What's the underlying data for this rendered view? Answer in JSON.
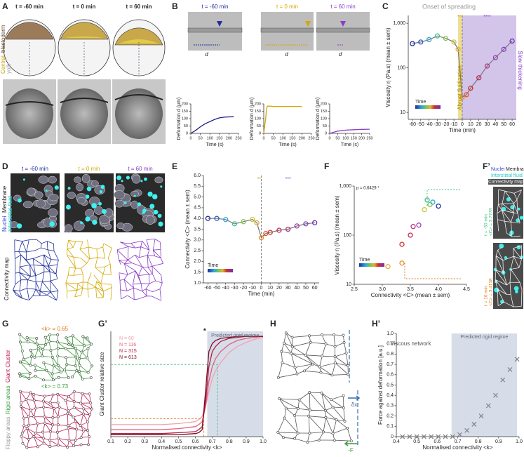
{
  "panel_labels": [
    "A",
    "B",
    "C",
    "D",
    "E",
    "F",
    "F’",
    "G",
    "G’",
    "H",
    "H’"
  ],
  "A": {
    "times": [
      "t = -60 min",
      "t = 0 min",
      "t = 60 min"
    ],
    "legend": [
      "Central",
      "blastoderm",
      "yolk"
    ]
  },
  "B": {
    "times": [
      "t = -60 min",
      "t = 0 min",
      "t = 60 min"
    ],
    "scale_labels": [
      "d",
      "d",
      "d"
    ]
  },
  "D": {
    "times": [
      "t = -60 min",
      "t = 0 min",
      "t = 60 min"
    ],
    "legend": [
      "Nuclei",
      "Membrane",
      "Interstitial fluid"
    ],
    "map_label": "Connectivity map"
  },
  "F2": {
    "legend": [
      "Nuclei",
      "Membrane",
      "Interstitial fluid"
    ],
    "map_label": "Connectivity map",
    "insets": [
      {
        "time": "t = -30 min",
        "value": "<C> = 3.7778"
      },
      {
        "time": "t = 10 min",
        "value": "<C> = 3.4138"
      }
    ]
  },
  "G": {
    "labels": [
      "<k> = 0.65",
      "<k> = 0.73"
    ],
    "legend": [
      "Floppy areas",
      "Rigid areas",
      "Giant Cluster"
    ]
  },
  "H": {
    "labels": [
      "δx",
      "-F"
    ]
  },
  "charts": {
    "B1": {
      "type": "line",
      "xlim": [
        0,
        250
      ],
      "ylim": [
        0,
        200
      ],
      "xticks": [
        0,
        50,
        100,
        150,
        200,
        250
      ],
      "yticks": [
        0,
        50,
        100,
        150,
        200
      ],
      "x_label": "Time (s)",
      "y_label": "Deformation d (μm)",
      "series": [
        {
          "color": "#1a1a8c",
          "x": [
            0,
            25,
            50,
            75,
            100,
            125,
            150,
            175,
            200,
            225
          ],
          "values": [
            0,
            20,
            45,
            65,
            80,
            95,
            105,
            110,
            112,
            113
          ]
        }
      ]
    },
    "B2": {
      "type": "line",
      "xlim": [
        0,
        250
      ],
      "ylim": [
        0,
        200
      ],
      "xticks": [
        0,
        50,
        100,
        150,
        200,
        250
      ],
      "yticks": [
        0,
        50,
        100,
        150,
        200
      ],
      "x_label": "Time (s)",
      "y_label": "Deformation d (μm)",
      "series": [
        {
          "color": "#d4a800",
          "x": [
            0,
            10,
            15,
            20,
            30,
            50,
            100,
            150,
            200
          ],
          "values": [
            0,
            100,
            170,
            185,
            185,
            183,
            183,
            183,
            183
          ]
        }
      ]
    },
    "B3": {
      "type": "line",
      "xlim": [
        0,
        250
      ],
      "ylim": [
        0,
        200
      ],
      "xticks": [
        0,
        50,
        100,
        150,
        200,
        250
      ],
      "yticks": [
        0,
        50,
        100,
        150,
        200
      ],
      "x_label": "Time (s)",
      "y_label": "Deformation d (μm)",
      "series": [
        {
          "color": "#8a3cc8",
          "x": [
            0,
            50,
            100,
            150,
            200,
            250
          ],
          "values": [
            0,
            15,
            22,
            25,
            27,
            28
          ]
        }
      ]
    },
    "C": {
      "type": "scatter",
      "connected": true,
      "log_y": true,
      "xlim": [
        -65,
        65
      ],
      "ylim": [
        7,
        1500
      ],
      "xticks": [
        -60,
        -50,
        -40,
        -30,
        -20,
        -10,
        0,
        10,
        20,
        30,
        40,
        50,
        60
      ],
      "yticks": [
        10,
        100,
        {
          "value": 1000,
          "label": "1,000"
        }
      ],
      "x_label": "Time (min)",
      "y_label": "Viscosity η (Pa.s) (mean ± sem)",
      "reference_x": 0,
      "colorbar": "Time",
      "regions": [
        {
          "from": -5,
          "to": 0,
          "color": "#eedd95"
        },
        {
          "from": 0,
          "to": 65,
          "color": "#d3c4ea"
        }
      ],
      "annotations": [
        "Onset of spreading",
        "***",
        "****",
        "Abrupt fluidization",
        "Slow thickening"
      ],
      "series": [
        {
          "color": "#777777",
          "x": [
            -60,
            -50,
            -40,
            -30,
            -20,
            -10,
            -5,
            0,
            5,
            10,
            20,
            30,
            40,
            50,
            60
          ],
          "values": [
            350,
            380,
            430,
            520,
            460,
            380,
            260,
            22,
            25,
            35,
            60,
            110,
            170,
            260,
            400
          ],
          "colors": [
            "#1f2f9c",
            "#2a5fc9",
            "#2ea6d8",
            "#3fbf8f",
            "#7fc84a",
            "#c9c53a",
            "#e0b23a",
            "#e89030",
            "#e25a2a",
            "#d0302a",
            "#c0285a",
            "#b03a8a",
            "#a040b0",
            "#8a40c0",
            "#7030b0"
          ]
        }
      ]
    },
    "E": {
      "type": "scatter",
      "connected": true,
      "xlim": [
        -65,
        65
      ],
      "ylim": [
        1,
        6
      ],
      "xticks": [
        -60,
        -50,
        -40,
        -30,
        -20,
        -10,
        0,
        10,
        20,
        30,
        40,
        50,
        60
      ],
      "yticks": [
        {
          "value": 1,
          "label": "1.0"
        },
        1.5,
        {
          "value": 2,
          "label": "2.0"
        },
        2.5,
        {
          "value": 3,
          "label": "3.0"
        },
        3.5,
        {
          "value": 4,
          "label": "4.0"
        },
        4.5,
        {
          "value": 5,
          "label": "5.0"
        },
        5.5,
        {
          "value": 6,
          "label": "6.0"
        }
      ],
      "x_label": "Time (min)",
      "y_label": "Connectivity <C> (mean ± sem)",
      "reference_x": 0,
      "colorbar": "Time",
      "annotations": [
        "**",
        "***"
      ],
      "series": [
        {
          "color": "#777777",
          "x": [
            -60,
            -50,
            -40,
            -30,
            -20,
            -10,
            -5,
            0,
            5,
            10,
            20,
            30,
            40,
            50,
            60
          ],
          "values": [
            4.0,
            4.0,
            3.95,
            3.75,
            3.85,
            3.95,
            3.8,
            3.1,
            3.3,
            3.35,
            3.45,
            3.5,
            3.65,
            3.75,
            3.8
          ],
          "colors": [
            "#1f2f9c",
            "#2a5fc9",
            "#2ea6d8",
            "#3fbf8f",
            "#7fc84a",
            "#c9c53a",
            "#e0b23a",
            "#e89030",
            "#e25a2a",
            "#d0302a",
            "#c0285a",
            "#b03a8a",
            "#a040b0",
            "#8a40c0",
            "#7030b0"
          ]
        }
      ]
    },
    "F": {
      "type": "scatter",
      "log_y": true,
      "xlim": [
        2.5,
        4.5
      ],
      "ylim": [
        10,
        1000
      ],
      "xticks": [
        2.5,
        {
          "value": 3,
          "label": "3.0"
        },
        3.5,
        {
          "value": 4,
          "label": "4.0"
        },
        4.5
      ],
      "yticks": [
        10,
        100,
        {
          "value": 1000,
          "label": "1,000"
        }
      ],
      "x_label": "Connectivity <C> (mean ± sem)",
      "y_label": "Viscosity η (Pa.s) (mean ± sem)",
      "colorbar": "Time",
      "annotations": [
        "p = 0.6429 *"
      ],
      "series": [
        {
          "color": "#777777",
          "x": [
            3.1,
            3.35,
            3.35,
            3.5,
            3.55,
            3.65,
            3.75,
            3.85,
            3.9,
            4.0,
            3.8
          ],
          "values": [
            23,
            27,
            65,
            100,
            150,
            160,
            330,
            420,
            470,
            390,
            520
          ],
          "colors": [
            "#e0b23a",
            "#e89030",
            "#d0302a",
            "#c0285a",
            "#b03a8a",
            "#a040b0",
            "#c9c53a",
            "#7fc84a",
            "#2ea6d8",
            "#1f2f9c",
            "#3fbf8f"
          ]
        }
      ]
    },
    "G2": {
      "type": "line",
      "legend": true,
      "xlim": [
        0.1,
        1.0
      ],
      "ylim": [
        0,
        1.05
      ],
      "xticks": [
        0.1,
        0.2,
        0.3,
        0.4,
        0.5,
        0.6,
        0.7,
        0.8,
        0.9,
        {
          "value": 1,
          "label": "1.0"
        }
      ],
      "yticks": [],
      "x_label": "Normalised connectivity <k>",
      "y_label": "Giant Cluster relative size",
      "regions": [
        {
          "from": 0.67,
          "to": 1.0,
          "color": "#d6dde9"
        }
      ],
      "annotations": [
        "Predicted rigid regime",
        "*"
      ],
      "guides": [
        {
          "x": 0.65,
          "y": 0.18,
          "color": "#e07a20"
        },
        {
          "x": 0.73,
          "y": 0.72,
          "color": "#40c080"
        }
      ],
      "series": [
        {
          "name": "N = 60",
          "color": "#f2a0b0",
          "x": [
            0.1,
            0.2,
            0.3,
            0.4,
            0.5,
            0.6,
            0.62,
            0.64,
            0.66,
            0.68,
            0.7,
            0.72,
            0.75,
            0.8,
            0.85,
            0.9,
            0.95,
            1.0
          ],
          "values": [
            0.12,
            0.12,
            0.12,
            0.12,
            0.13,
            0.15,
            0.17,
            0.2,
            0.3,
            0.45,
            0.58,
            0.66,
            0.74,
            0.84,
            0.9,
            0.94,
            0.97,
            0.99
          ]
        },
        {
          "name": "N = 116",
          "color": "#e06080",
          "x": [
            0.1,
            0.2,
            0.3,
            0.4,
            0.5,
            0.6,
            0.62,
            0.64,
            0.66,
            0.68,
            0.7,
            0.72,
            0.75,
            0.8,
            0.85,
            0.9,
            0.95,
            1.0
          ],
          "values": [
            0.07,
            0.07,
            0.07,
            0.07,
            0.08,
            0.1,
            0.12,
            0.15,
            0.3,
            0.55,
            0.7,
            0.78,
            0.85,
            0.92,
            0.96,
            0.98,
            0.99,
            1.0
          ]
        },
        {
          "name": "N = 315",
          "color": "#b0203f",
          "x": [
            0.1,
            0.2,
            0.3,
            0.4,
            0.5,
            0.6,
            0.62,
            0.64,
            0.66,
            0.68,
            0.7,
            0.72,
            0.75,
            0.8,
            0.85,
            0.9,
            0.95,
            1.0
          ],
          "values": [
            0.03,
            0.03,
            0.03,
            0.03,
            0.04,
            0.05,
            0.07,
            0.1,
            0.35,
            0.7,
            0.85,
            0.9,
            0.95,
            0.98,
            0.99,
            1.0,
            1.0,
            1.0
          ]
        },
        {
          "name": "N = 613",
          "color": "#7a0a25",
          "x": [
            0.1,
            0.2,
            0.3,
            0.4,
            0.5,
            0.6,
            0.62,
            0.64,
            0.66,
            0.68,
            0.7,
            0.72,
            0.75,
            0.8,
            0.85,
            0.9,
            0.95,
            1.0
          ],
          "values": [
            0.02,
            0.02,
            0.02,
            0.02,
            0.02,
            0.03,
            0.04,
            0.07,
            0.45,
            0.85,
            0.93,
            0.96,
            0.98,
            0.99,
            1.0,
            1.0,
            1.0,
            1.0
          ]
        }
      ]
    },
    "H2": {
      "type": "cross",
      "xlim": [
        0.4,
        1.0
      ],
      "ylim": [
        0,
        1.0
      ],
      "xticks": [
        0.4,
        0.5,
        0.6,
        0.7,
        0.8,
        0.9,
        {
          "value": 1,
          "label": "1.0"
        }
      ],
      "yticks": [
        0,
        0.1,
        0.2,
        0.3,
        0.4,
        0.5,
        0.6,
        0.7,
        0.8,
        0.9,
        {
          "value": 1,
          "label": "1.0"
        }
      ],
      "x_label": "Normalised connectivity <k>",
      "y_label": "Force against deformation [a.u.]",
      "regions": [
        {
          "from": 0.67,
          "to": 0.99,
          "color": "#d6dde9"
        }
      ],
      "annotations": [
        "Viscous network",
        "Predicted rigid regime"
      ],
      "series": [
        {
          "color": "#888888",
          "x": [
            0.43,
            0.465,
            0.5,
            0.535,
            0.57,
            0.605,
            0.64,
            0.675,
            0.71,
            0.745,
            0.78,
            0.815,
            0.85,
            0.885,
            0.92,
            0.955,
            0.99
          ],
          "values": [
            0,
            0,
            0,
            0,
            0,
            0,
            0,
            0,
            0.02,
            0.06,
            0.12,
            0.2,
            0.3,
            0.4,
            0.55,
            0.65,
            0.75
          ]
        }
      ]
    }
  }
}
